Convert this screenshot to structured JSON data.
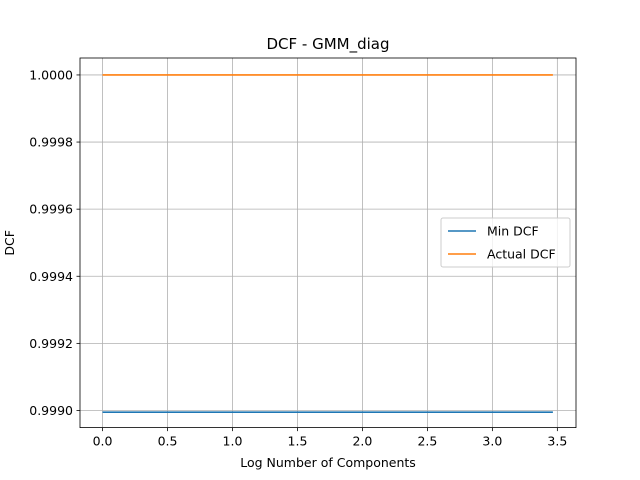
{
  "chart_data": {
    "type": "line",
    "title": "DCF - GMM_diag",
    "xlabel": "Log Number of Components",
    "ylabel": "DCF",
    "xlim": [
      -0.1735,
      3.6435
    ],
    "ylim": [
      0.998949,
      1.0000505
    ],
    "xticks": [
      0.0,
      0.5,
      1.0,
      1.5,
      2.0,
      2.5,
      3.0,
      3.5
    ],
    "xtick_labels": [
      "0.0",
      "0.5",
      "1.0",
      "1.5",
      "2.0",
      "2.5",
      "3.0",
      "3.5"
    ],
    "yticks": [
      0.999,
      0.9992,
      0.9994,
      0.9996,
      0.9998,
      1.0
    ],
    "ytick_labels": [
      "0.9990",
      "0.9992",
      "0.9994",
      "0.9996",
      "0.9998",
      "1.0000"
    ],
    "grid": true,
    "legend_position": "center-right",
    "x": [
      0.0,
      0.6931,
      1.3863,
      2.0794,
      2.7726,
      3.4657
    ],
    "series": [
      {
        "name": "Min DCF",
        "color": "#1f77b4",
        "values": [
          0.998995,
          0.998995,
          0.998995,
          0.998995,
          0.998995,
          0.998995
        ]
      },
      {
        "name": "Actual DCF",
        "color": "#ff7f0e",
        "values": [
          1.0,
          1.0,
          1.0,
          1.0,
          1.0,
          1.0
        ]
      }
    ]
  }
}
